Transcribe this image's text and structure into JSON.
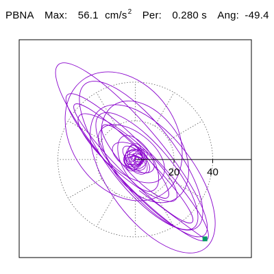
{
  "header": {
    "station": "PBNA",
    "max_label": "Max:",
    "max_value": "56.1",
    "max_unit": "cm/s",
    "max_unit_sup": "2",
    "per_label": "Per:",
    "per_value": "0.280 s",
    "ang_label": "Ang:",
    "ang_value": "-49.4"
  },
  "chart_data": {
    "type": "polar-particle-motion",
    "title": "PBNA  Max: 56.1 cm/s2  Per: 0.280 s  Ang: -49.4",
    "units": "cm/s2",
    "max_amplitude": 56.1,
    "period_s": 0.28,
    "angle_deg": -49.4,
    "radial_ticks": [
      20,
      40
    ],
    "range_rings": [
      20,
      40
    ],
    "grid": true,
    "axis_limits": {
      "x": [
        -60,
        60
      ],
      "y": [
        -45,
        55
      ]
    },
    "trace_color": "#8800cc",
    "end_marker_color": "#009966",
    "end_point": [
      36,
      -41
    ],
    "ellipses": [
      {
        "a": 58.0,
        "b": 14.0,
        "rotation_deg": -49.4,
        "cx": -2.0,
        "cy": 5.0
      },
      {
        "a": 52.0,
        "b": 10.0,
        "rotation_deg": -46.0,
        "cx": 1.0,
        "cy": -4.0
      },
      {
        "a": 47.0,
        "b": 17.0,
        "rotation_deg": -52.0,
        "cx": 3.0,
        "cy": 2.0
      },
      {
        "a": 43.0,
        "b": 7.0,
        "rotation_deg": -45.0,
        "cx": -1.0,
        "cy": -2.0
      },
      {
        "a": 38.0,
        "b": 13.0,
        "rotation_deg": -50.0,
        "cx": 6.0,
        "cy": -6.0
      },
      {
        "a": 33.0,
        "b": 9.0,
        "rotation_deg": -41.0,
        "cx": -4.0,
        "cy": 1.0
      },
      {
        "a": 29.0,
        "b": 19.0,
        "rotation_deg": -56.0,
        "cx": 5.0,
        "cy": 4.0
      },
      {
        "a": 25.0,
        "b": 6.0,
        "rotation_deg": -48.0,
        "cx": 0.0,
        "cy": -1.0
      },
      {
        "a": 20.0,
        "b": 11.0,
        "rotation_deg": -38.0,
        "cx": -2.0,
        "cy": 3.0
      },
      {
        "a": 16.0,
        "b": 8.0,
        "rotation_deg": -60.0,
        "cx": 1.5,
        "cy": -2.0
      },
      {
        "a": 12.0,
        "b": 6.0,
        "rotation_deg": -30.0,
        "cx": -1.0,
        "cy": 1.0
      },
      {
        "a": 9.0,
        "b": 4.0,
        "rotation_deg": -45.0,
        "cx": 0.5,
        "cy": 0.0
      },
      {
        "a": 6.0,
        "b": 5.0,
        "rotation_deg": 0.0,
        "cx": 0.0,
        "cy": 0.0
      },
      {
        "a": 45.0,
        "b": 22.0,
        "rotation_deg": -53.0,
        "cx": 9.0,
        "cy": -10.0
      },
      {
        "a": 36.0,
        "b": 27.0,
        "rotation_deg": -55.0,
        "cx": -6.0,
        "cy": 12.0
      }
    ]
  }
}
